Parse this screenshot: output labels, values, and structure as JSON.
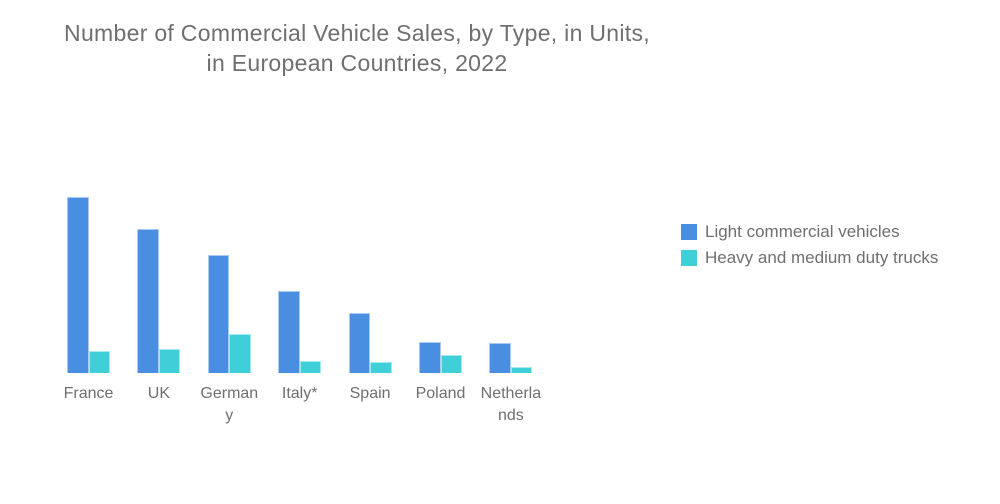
{
  "page": {
    "background": "#FFFFFF",
    "text_color": "#6F6F6F"
  },
  "chart_data": {
    "type": "bar",
    "title": "Number of Commercial Vehicle Sales, by Type, in Units,\nin European Countries, 2022",
    "categories": [
      "France",
      "UK",
      "Germany",
      "Italy*",
      "Spain",
      "Poland",
      "Netherlands"
    ],
    "category_label_lines": [
      [
        "France"
      ],
      [
        "UK"
      ],
      [
        "German",
        "y"
      ],
      [
        "Italy*"
      ],
      [
        "Spain"
      ],
      [
        "Poland"
      ],
      [
        "Netherla",
        "nds"
      ]
    ],
    "series": [
      {
        "name": "Light commercial vehicles",
        "color": "#4A8EE2",
        "border_color": "#A9CBF2",
        "values": [
          341000,
          279000,
          228000,
          158000,
          117000,
          60000,
          58000
        ]
      },
      {
        "name": "Heavy and medium duty trucks",
        "color": "#3ECFD8",
        "border_color": "#A3E9EE",
        "values": [
          43000,
          46000,
          75000,
          24000,
          22000,
          34000,
          12000
        ]
      }
    ],
    "xlabel": "",
    "ylabel": "",
    "ylim": [
      0,
      350000
    ],
    "grid": false,
    "axis_scale_shown": false,
    "value_labels_shown": false,
    "legend_position": "right",
    "note": "No axis scale or data labels are displayed; series values are estimated from relative bar heights."
  }
}
